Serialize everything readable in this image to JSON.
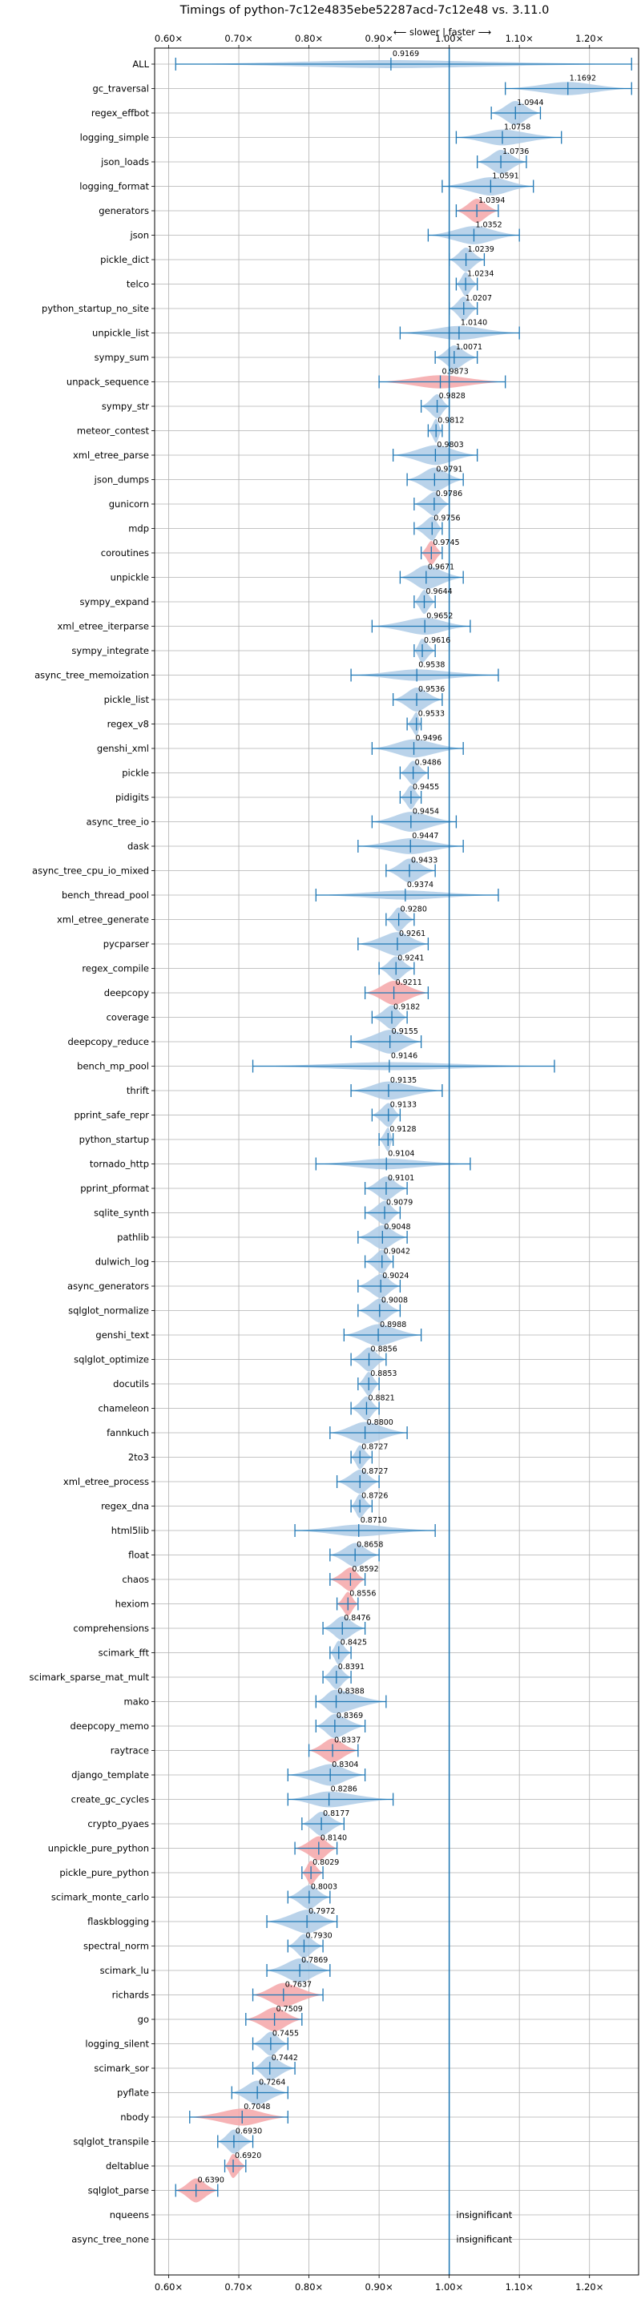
{
  "chart_data": {
    "type": "violin",
    "orientation": "horizontal",
    "title": "Timings of python-7c12e4835ebe52287acd-7c12e48 vs. 3.11.0",
    "direction_label": "⟵ slower | faster ⟶",
    "xlim": [
      0.58,
      1.27
    ],
    "xticks": [
      0.6,
      0.7,
      0.8,
      0.9,
      1.0,
      1.1,
      1.2
    ],
    "xtick_labels": [
      "0.60×",
      "0.70×",
      "0.80×",
      "0.90×",
      "1.00×",
      "1.10×",
      "1.20×"
    ],
    "reference_line": 1.0,
    "grid": true,
    "colors": {
      "insignificant": "#aecbe6",
      "significant": "#f4a6a8",
      "line": "#1f77b4",
      "grid": "#b0b0b0"
    },
    "benchmarks": [
      {
        "name": "ALL",
        "median": 0.9169,
        "min": 0.61,
        "max": 1.26,
        "significant": false
      },
      {
        "name": "gc_traversal",
        "median": 1.1692,
        "min": 1.08,
        "max": 1.26,
        "significant": false
      },
      {
        "name": "regex_effbot",
        "median": 1.0944,
        "min": 1.06,
        "max": 1.13,
        "significant": false
      },
      {
        "name": "logging_simple",
        "median": 1.0758,
        "min": 1.01,
        "max": 1.16,
        "significant": false
      },
      {
        "name": "json_loads",
        "median": 1.0736,
        "min": 1.04,
        "max": 1.11,
        "significant": false
      },
      {
        "name": "logging_format",
        "median": 1.0591,
        "min": 0.99,
        "max": 1.12,
        "significant": false
      },
      {
        "name": "generators",
        "median": 1.0394,
        "min": 1.01,
        "max": 1.07,
        "significant": true
      },
      {
        "name": "json",
        "median": 1.0352,
        "min": 0.97,
        "max": 1.1,
        "significant": false
      },
      {
        "name": "pickle_dict",
        "median": 1.0239,
        "min": 1.0,
        "max": 1.05,
        "significant": false
      },
      {
        "name": "telco",
        "median": 1.0234,
        "min": 1.01,
        "max": 1.04,
        "significant": false
      },
      {
        "name": "python_startup_no_site",
        "median": 1.0207,
        "min": 1.0,
        "max": 1.04,
        "significant": false
      },
      {
        "name": "unpickle_list",
        "median": 1.014,
        "min": 0.93,
        "max": 1.1,
        "significant": false
      },
      {
        "name": "sympy_sum",
        "median": 1.0071,
        "min": 0.98,
        "max": 1.04,
        "significant": false
      },
      {
        "name": "unpack_sequence",
        "median": 0.9873,
        "min": 0.9,
        "max": 1.08,
        "significant": true
      },
      {
        "name": "sympy_str",
        "median": 0.9828,
        "min": 0.96,
        "max": 1.0,
        "significant": false
      },
      {
        "name": "meteor_contest",
        "median": 0.9812,
        "min": 0.97,
        "max": 0.99,
        "significant": false
      },
      {
        "name": "xml_etree_parse",
        "median": 0.9803,
        "min": 0.92,
        "max": 1.04,
        "significant": false
      },
      {
        "name": "json_dumps",
        "median": 0.9791,
        "min": 0.94,
        "max": 1.02,
        "significant": false
      },
      {
        "name": "gunicorn",
        "median": 0.9786,
        "min": 0.95,
        "max": 1.0,
        "significant": false
      },
      {
        "name": "mdp",
        "median": 0.9756,
        "min": 0.95,
        "max": 0.99,
        "significant": false
      },
      {
        "name": "coroutines",
        "median": 0.9745,
        "min": 0.96,
        "max": 0.99,
        "significant": true
      },
      {
        "name": "unpickle",
        "median": 0.9671,
        "min": 0.93,
        "max": 1.02,
        "significant": false
      },
      {
        "name": "sympy_expand",
        "median": 0.9644,
        "min": 0.95,
        "max": 0.98,
        "significant": false
      },
      {
        "name": "xml_etree_iterparse",
        "median": 0.9652,
        "min": 0.89,
        "max": 1.03,
        "significant": false
      },
      {
        "name": "sympy_integrate",
        "median": 0.9616,
        "min": 0.95,
        "max": 0.98,
        "significant": false
      },
      {
        "name": "async_tree_memoization",
        "median": 0.9538,
        "min": 0.86,
        "max": 1.07,
        "significant": false
      },
      {
        "name": "pickle_list",
        "median": 0.9536,
        "min": 0.92,
        "max": 0.99,
        "significant": false
      },
      {
        "name": "regex_v8",
        "median": 0.9533,
        "min": 0.94,
        "max": 0.96,
        "significant": false
      },
      {
        "name": "genshi_xml",
        "median": 0.9496,
        "min": 0.89,
        "max": 1.02,
        "significant": false
      },
      {
        "name": "pickle",
        "median": 0.9486,
        "min": 0.93,
        "max": 0.97,
        "significant": false
      },
      {
        "name": "pidigits",
        "median": 0.9455,
        "min": 0.93,
        "max": 0.96,
        "significant": false
      },
      {
        "name": "async_tree_io",
        "median": 0.9454,
        "min": 0.89,
        "max": 1.01,
        "significant": false
      },
      {
        "name": "dask",
        "median": 0.9447,
        "min": 0.87,
        "max": 1.02,
        "significant": false
      },
      {
        "name": "async_tree_cpu_io_mixed",
        "median": 0.9433,
        "min": 0.91,
        "max": 0.98,
        "significant": false
      },
      {
        "name": "bench_thread_pool",
        "median": 0.9374,
        "min": 0.81,
        "max": 1.07,
        "significant": false
      },
      {
        "name": "xml_etree_generate",
        "median": 0.928,
        "min": 0.91,
        "max": 0.95,
        "significant": false
      },
      {
        "name": "pycparser",
        "median": 0.9261,
        "min": 0.87,
        "max": 0.97,
        "significant": false
      },
      {
        "name": "regex_compile",
        "median": 0.9241,
        "min": 0.9,
        "max": 0.95,
        "significant": false
      },
      {
        "name": "deepcopy",
        "median": 0.9211,
        "min": 0.88,
        "max": 0.97,
        "significant": true
      },
      {
        "name": "coverage",
        "median": 0.9182,
        "min": 0.89,
        "max": 0.94,
        "significant": false
      },
      {
        "name": "deepcopy_reduce",
        "median": 0.9155,
        "min": 0.86,
        "max": 0.96,
        "significant": false
      },
      {
        "name": "bench_mp_pool",
        "median": 0.9146,
        "min": 0.72,
        "max": 1.15,
        "significant": false
      },
      {
        "name": "thrift",
        "median": 0.9135,
        "min": 0.86,
        "max": 0.99,
        "significant": false
      },
      {
        "name": "pprint_safe_repr",
        "median": 0.9133,
        "min": 0.89,
        "max": 0.93,
        "significant": false
      },
      {
        "name": "python_startup",
        "median": 0.9128,
        "min": 0.9,
        "max": 0.92,
        "significant": false
      },
      {
        "name": "tornado_http",
        "median": 0.9104,
        "min": 0.81,
        "max": 1.03,
        "significant": false
      },
      {
        "name": "pprint_pformat",
        "median": 0.9101,
        "min": 0.88,
        "max": 0.94,
        "significant": false
      },
      {
        "name": "sqlite_synth",
        "median": 0.9079,
        "min": 0.88,
        "max": 0.93,
        "significant": false
      },
      {
        "name": "pathlib",
        "median": 0.9048,
        "min": 0.87,
        "max": 0.94,
        "significant": false
      },
      {
        "name": "dulwich_log",
        "median": 0.9042,
        "min": 0.88,
        "max": 0.92,
        "significant": false
      },
      {
        "name": "async_generators",
        "median": 0.9024,
        "min": 0.87,
        "max": 0.93,
        "significant": false
      },
      {
        "name": "sqlglot_normalize",
        "median": 0.9008,
        "min": 0.87,
        "max": 0.93,
        "significant": false
      },
      {
        "name": "genshi_text",
        "median": 0.8988,
        "min": 0.85,
        "max": 0.96,
        "significant": false
      },
      {
        "name": "sqlglot_optimize",
        "median": 0.8856,
        "min": 0.86,
        "max": 0.91,
        "significant": false
      },
      {
        "name": "docutils",
        "median": 0.8853,
        "min": 0.87,
        "max": 0.9,
        "significant": false
      },
      {
        "name": "chameleon",
        "median": 0.8821,
        "min": 0.86,
        "max": 0.9,
        "significant": false
      },
      {
        "name": "fannkuch",
        "median": 0.88,
        "min": 0.83,
        "max": 0.94,
        "significant": false
      },
      {
        "name": "2to3",
        "median": 0.8727,
        "min": 0.86,
        "max": 0.89,
        "significant": false
      },
      {
        "name": "xml_etree_process",
        "median": 0.8727,
        "min": 0.84,
        "max": 0.9,
        "significant": false
      },
      {
        "name": "regex_dna",
        "median": 0.8726,
        "min": 0.86,
        "max": 0.89,
        "significant": false
      },
      {
        "name": "html5lib",
        "median": 0.871,
        "min": 0.78,
        "max": 0.98,
        "significant": false
      },
      {
        "name": "float",
        "median": 0.8658,
        "min": 0.83,
        "max": 0.9,
        "significant": false
      },
      {
        "name": "chaos",
        "median": 0.8592,
        "min": 0.83,
        "max": 0.88,
        "significant": true
      },
      {
        "name": "hexiom",
        "median": 0.8556,
        "min": 0.84,
        "max": 0.87,
        "significant": true
      },
      {
        "name": "comprehensions",
        "median": 0.8476,
        "min": 0.82,
        "max": 0.88,
        "significant": false
      },
      {
        "name": "scimark_fft",
        "median": 0.8425,
        "min": 0.83,
        "max": 0.86,
        "significant": false
      },
      {
        "name": "scimark_sparse_mat_mult",
        "median": 0.8391,
        "min": 0.82,
        "max": 0.86,
        "significant": false
      },
      {
        "name": "mako",
        "median": 0.8388,
        "min": 0.81,
        "max": 0.91,
        "significant": false
      },
      {
        "name": "deepcopy_memo",
        "median": 0.8369,
        "min": 0.81,
        "max": 0.88,
        "significant": false
      },
      {
        "name": "raytrace",
        "median": 0.8337,
        "min": 0.8,
        "max": 0.87,
        "significant": true
      },
      {
        "name": "django_template",
        "median": 0.8304,
        "min": 0.77,
        "max": 0.88,
        "significant": false
      },
      {
        "name": "create_gc_cycles",
        "median": 0.8286,
        "min": 0.77,
        "max": 0.92,
        "significant": false
      },
      {
        "name": "crypto_pyaes",
        "median": 0.8177,
        "min": 0.79,
        "max": 0.85,
        "significant": false
      },
      {
        "name": "unpickle_pure_python",
        "median": 0.814,
        "min": 0.78,
        "max": 0.84,
        "significant": true
      },
      {
        "name": "pickle_pure_python",
        "median": 0.8029,
        "min": 0.79,
        "max": 0.82,
        "significant": true
      },
      {
        "name": "scimark_monte_carlo",
        "median": 0.8003,
        "min": 0.77,
        "max": 0.83,
        "significant": false
      },
      {
        "name": "flaskblogging",
        "median": 0.7972,
        "min": 0.74,
        "max": 0.84,
        "significant": false
      },
      {
        "name": "spectral_norm",
        "median": 0.793,
        "min": 0.77,
        "max": 0.82,
        "significant": false
      },
      {
        "name": "scimark_lu",
        "median": 0.7869,
        "min": 0.74,
        "max": 0.83,
        "significant": false
      },
      {
        "name": "richards",
        "median": 0.7637,
        "min": 0.72,
        "max": 0.82,
        "significant": true
      },
      {
        "name": "go",
        "median": 0.7509,
        "min": 0.71,
        "max": 0.79,
        "significant": true
      },
      {
        "name": "logging_silent",
        "median": 0.7455,
        "min": 0.72,
        "max": 0.77,
        "significant": false
      },
      {
        "name": "scimark_sor",
        "median": 0.7442,
        "min": 0.72,
        "max": 0.78,
        "significant": false
      },
      {
        "name": "pyflate",
        "median": 0.7264,
        "min": 0.69,
        "max": 0.77,
        "significant": false
      },
      {
        "name": "nbody",
        "median": 0.7048,
        "min": 0.63,
        "max": 0.77,
        "significant": true
      },
      {
        "name": "sqlglot_transpile",
        "median": 0.693,
        "min": 0.67,
        "max": 0.72,
        "significant": false
      },
      {
        "name": "deltablue",
        "median": 0.692,
        "min": 0.68,
        "max": 0.71,
        "significant": true
      },
      {
        "name": "sqlglot_parse",
        "median": 0.639,
        "min": 0.61,
        "max": 0.67,
        "significant": true
      },
      {
        "name": "nqueens",
        "median": null,
        "min": null,
        "max": null,
        "significant": false,
        "note": "insignificant"
      },
      {
        "name": "async_tree_none",
        "median": null,
        "min": null,
        "max": null,
        "significant": false,
        "note": "insignificant"
      }
    ]
  }
}
